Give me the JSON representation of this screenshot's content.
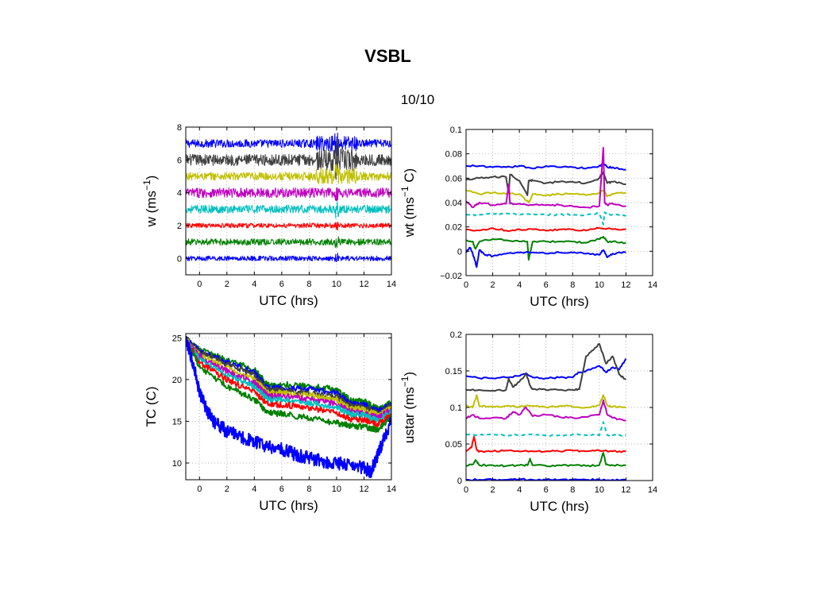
{
  "page": {
    "title": "VSBL",
    "subtitle": "10/10"
  },
  "chart_data": [
    {
      "id": "w",
      "type": "line",
      "xlabel": "UTC (hrs)",
      "ylabel_main": "w (ms",
      "ylabel_sup": "−1",
      "ylabel_tail": ")",
      "xlim": [
        -1,
        14
      ],
      "ylim": [
        -1,
        8
      ],
      "xticks": [
        0,
        2,
        4,
        6,
        8,
        10,
        12,
        14
      ],
      "yticks": [
        0,
        2,
        4,
        6,
        8
      ],
      "grid": true,
      "series": [
        {
          "offset": 7,
          "color": "#0000ff",
          "amplitude": 0.25
        },
        {
          "offset": 6,
          "color": "#404040",
          "amplitude": 0.35
        },
        {
          "offset": 5,
          "color": "#bfbf00",
          "amplitude": 0.25
        },
        {
          "offset": 4,
          "color": "#bf00bf",
          "amplitude": 0.3
        },
        {
          "offset": 3,
          "color": "#00bfbf",
          "amplitude": 0.25
        },
        {
          "offset": 2,
          "color": "#ff0000",
          "amplitude": 0.15
        },
        {
          "offset": 1,
          "color": "#008000",
          "amplitude": 0.2
        },
        {
          "offset": 0,
          "color": "#0000ff",
          "amplitude": 0.15
        }
      ]
    },
    {
      "id": "wt",
      "type": "line",
      "xlabel": "UTC (hrs)",
      "ylabel_main": "wt (ms",
      "ylabel_sup": "−1",
      "ylabel_tail": " C)",
      "xlim": [
        0,
        14
      ],
      "ylim": [
        -0.02,
        0.1
      ],
      "xticks": [
        0,
        2,
        4,
        6,
        8,
        10,
        12,
        14
      ],
      "yticks": [
        -0.02,
        0,
        0.02,
        0.04,
        0.06,
        0.08,
        0.1
      ],
      "yticklabels": [
        "−0.02",
        "0",
        "0.02",
        "0.04",
        "0.06",
        "0.08",
        "0.1"
      ],
      "grid": true,
      "series": [
        {
          "color": "#0000ff",
          "dash": false,
          "x": [
            0,
            1,
            2,
            3,
            4,
            5,
            6,
            7,
            8,
            9,
            10,
            10.3,
            10.6,
            11,
            12
          ],
          "y": [
            0.07,
            0.07,
            0.069,
            0.069,
            0.07,
            0.068,
            0.07,
            0.069,
            0.069,
            0.068,
            0.07,
            0.072,
            0.069,
            0.069,
            0.067
          ]
        },
        {
          "color": "#404040",
          "dash": false,
          "x": [
            0,
            1,
            2,
            3,
            3.2,
            3.3,
            4,
            4.6,
            4.7,
            5,
            6,
            7,
            8,
            9,
            10,
            10.3,
            10.6,
            11,
            12
          ],
          "y": [
            0.059,
            0.06,
            0.061,
            0.061,
            0.048,
            0.063,
            0.058,
            0.046,
            0.058,
            0.058,
            0.056,
            0.057,
            0.057,
            0.056,
            0.06,
            0.065,
            0.056,
            0.057,
            0.055
          ]
        },
        {
          "color": "#bfbf00",
          "dash": false,
          "x": [
            0,
            1,
            2,
            3,
            4,
            4.7,
            5,
            6,
            7,
            8,
            9,
            10,
            10.3,
            10.6,
            11,
            12
          ],
          "y": [
            0.05,
            0.047,
            0.048,
            0.047,
            0.047,
            0.04,
            0.047,
            0.046,
            0.047,
            0.047,
            0.046,
            0.048,
            0.05,
            0.045,
            0.047,
            0.048
          ]
        },
        {
          "color": "#bf00bf",
          "dash": false,
          "x": [
            0,
            0.5,
            1,
            2,
            3,
            3.2,
            3.3,
            4,
            5,
            6,
            7,
            8,
            9,
            10,
            10.3,
            10.4,
            10.6,
            11,
            12
          ],
          "y": [
            0.041,
            0.036,
            0.04,
            0.038,
            0.039,
            0.055,
            0.039,
            0.039,
            0.038,
            0.038,
            0.038,
            0.037,
            0.036,
            0.037,
            0.085,
            0.04,
            0.038,
            0.039,
            0.037
          ]
        },
        {
          "color": "#00bfbf",
          "dash": true,
          "x": [
            0,
            1,
            2,
            3,
            4,
            5,
            6,
            7,
            8,
            9,
            10,
            10.3,
            10.4,
            10.6,
            11,
            12
          ],
          "y": [
            0.03,
            0.03,
            0.031,
            0.031,
            0.03,
            0.031,
            0.03,
            0.03,
            0.03,
            0.03,
            0.031,
            0.022,
            0.032,
            0.03,
            0.03,
            0.029
          ]
        },
        {
          "color": "#ff0000",
          "dash": false,
          "x": [
            0,
            1,
            2,
            3,
            4,
            5,
            6,
            7,
            8,
            9,
            10,
            11,
            12
          ],
          "y": [
            0.018,
            0.017,
            0.019,
            0.017,
            0.018,
            0.018,
            0.017,
            0.018,
            0.018,
            0.017,
            0.019,
            0.018,
            0.018
          ]
        },
        {
          "color": "#008000",
          "dash": false,
          "x": [
            0,
            0.5,
            0.7,
            1,
            2,
            3,
            4,
            4.6,
            4.7,
            5,
            6,
            7,
            8,
            9,
            10,
            10.3,
            10.6,
            11,
            12
          ],
          "y": [
            0.009,
            0.008,
            0.002,
            0.008,
            0.01,
            0.009,
            0.008,
            0.008,
            -0.007,
            0.008,
            0.008,
            0.008,
            0.008,
            0.007,
            0.01,
            0.012,
            0.008,
            0.008,
            0.007
          ]
        },
        {
          "color": "#0000ff",
          "dash": false,
          "x": [
            0,
            0.3,
            0.6,
            0.8,
            1,
            1.5,
            2,
            3,
            4,
            5,
            6,
            7,
            8,
            9,
            10,
            10.3,
            10.6,
            11,
            12
          ],
          "y": [
            -0.001,
            0.003,
            -0.005,
            -0.013,
            0.001,
            -0.003,
            -0.004,
            -0.002,
            -0.001,
            -0.001,
            -0.002,
            -0.001,
            -0.001,
            -0.002,
            -0.003,
            0.001,
            -0.005,
            -0.002,
            -0.001
          ]
        }
      ]
    },
    {
      "id": "tc",
      "type": "line",
      "xlabel": "UTC (hrs)",
      "ylabel_main": "TC (C)",
      "ylabel_sup": "",
      "ylabel_tail": "",
      "xlim": [
        -1,
        14
      ],
      "ylim": [
        8,
        25.5
      ],
      "xticks": [
        0,
        2,
        4,
        6,
        8,
        10,
        12,
        14
      ],
      "yticks": [
        10,
        15,
        20,
        25
      ],
      "grid": true,
      "series": [
        {
          "color": "#008000",
          "x": [
            -1,
            0,
            2,
            4,
            5,
            6,
            8,
            10,
            11,
            12,
            13,
            14
          ],
          "y": [
            24.8,
            23.6,
            22.3,
            21.2,
            19.3,
            19.4,
            19.2,
            18.8,
            17.5,
            17.4,
            16.5,
            17.2
          ]
        },
        {
          "color": "#0000ff",
          "x": [
            -1,
            0,
            2,
            4,
            5,
            6,
            8,
            10,
            11,
            12,
            13,
            14
          ],
          "y": [
            24.8,
            23.4,
            22.1,
            20.8,
            19.0,
            19.0,
            18.8,
            18.4,
            17.1,
            17.0,
            16.2,
            17.0
          ]
        },
        {
          "color": "#404040",
          "x": [
            -1,
            0,
            2,
            4,
            5,
            6,
            8,
            10,
            11,
            12,
            13,
            14
          ],
          "y": [
            24.8,
            23.2,
            21.8,
            20.5,
            18.7,
            18.7,
            18.4,
            18.0,
            16.8,
            16.7,
            15.9,
            16.8
          ]
        },
        {
          "color": "#bfbf00",
          "x": [
            -1,
            0,
            2,
            4,
            5,
            6,
            8,
            10,
            11,
            12,
            13,
            14
          ],
          "y": [
            24.8,
            23.0,
            21.4,
            20.0,
            18.4,
            18.4,
            18.1,
            17.6,
            16.5,
            16.4,
            15.7,
            16.6
          ]
        },
        {
          "color": "#bf00bf",
          "x": [
            -1,
            0,
            2,
            4,
            5,
            6,
            8,
            10,
            11,
            12,
            13,
            14
          ],
          "y": [
            24.8,
            22.7,
            21.0,
            19.6,
            18.0,
            18.0,
            17.7,
            17.1,
            16.2,
            16.0,
            15.4,
            16.4
          ]
        },
        {
          "color": "#00bfbf",
          "x": [
            -1,
            0,
            2,
            4,
            5,
            6,
            8,
            10,
            11,
            12,
            13,
            14
          ],
          "y": [
            24.8,
            22.4,
            20.6,
            19.2,
            17.6,
            17.6,
            17.2,
            16.7,
            15.9,
            15.7,
            15.1,
            16.2
          ]
        },
        {
          "color": "#ff0000",
          "x": [
            -1,
            0,
            2,
            4,
            5,
            6,
            8,
            10,
            11,
            12,
            13,
            14
          ],
          "y": [
            24.8,
            22.0,
            20.0,
            18.5,
            17.0,
            17.0,
            16.6,
            16.0,
            15.3,
            15.2,
            14.6,
            15.8
          ]
        },
        {
          "color": "#008000",
          "x": [
            -1,
            0,
            2,
            4,
            5,
            6,
            8,
            10,
            11,
            12,
            13,
            14
          ],
          "y": [
            24.8,
            21.5,
            19.2,
            17.6,
            16.0,
            15.9,
            15.4,
            14.8,
            14.5,
            14.3,
            14.0,
            15.5
          ]
        },
        {
          "color": "#0000ff",
          "x": [
            -1,
            -0.5,
            0,
            0.5,
            1,
            2,
            3,
            4,
            5,
            6,
            7,
            8,
            9,
            10,
            11,
            12,
            12.5,
            13,
            14
          ],
          "y": [
            24.8,
            22.0,
            18.5,
            16.5,
            15.0,
            13.8,
            13.2,
            12.5,
            12.0,
            11.7,
            11.0,
            10.6,
            10.2,
            10.0,
            9.9,
            9.4,
            9.0,
            11.0,
            15.0
          ]
        }
      ]
    },
    {
      "id": "ustar",
      "type": "line",
      "xlabel": "UTC (hrs)",
      "ylabel_main": "ustar (ms",
      "ylabel_sup": "−1",
      "ylabel_tail": ")",
      "xlim": [
        0,
        14
      ],
      "ylim": [
        0,
        0.2
      ],
      "xticks": [
        0,
        2,
        4,
        6,
        8,
        10,
        12,
        14
      ],
      "yticks": [
        0,
        0.05,
        0.1,
        0.15,
        0.2
      ],
      "yticklabels": [
        "0",
        "0.05",
        "0.1",
        "0.15",
        "0.2"
      ],
      "grid": true,
      "series": [
        {
          "color": "#0000ff",
          "dash": false,
          "x": [
            0,
            1,
            2,
            3,
            4,
            4.5,
            5,
            6,
            7,
            8,
            8.5,
            9,
            10,
            10.5,
            11,
            11.5,
            12
          ],
          "y": [
            0.143,
            0.14,
            0.14,
            0.141,
            0.143,
            0.147,
            0.141,
            0.14,
            0.141,
            0.141,
            0.148,
            0.15,
            0.157,
            0.148,
            0.155,
            0.152,
            0.167
          ]
        },
        {
          "color": "#404040",
          "dash": false,
          "x": [
            0,
            1,
            2,
            3,
            3.2,
            3.5,
            4,
            4.5,
            4.8,
            5,
            6,
            7,
            8,
            8.5,
            9,
            9.5,
            10,
            10.5,
            11,
            11.5,
            12
          ],
          "y": [
            0.124,
            0.124,
            0.123,
            0.124,
            0.14,
            0.128,
            0.135,
            0.146,
            0.13,
            0.125,
            0.124,
            0.124,
            0.124,
            0.125,
            0.17,
            0.178,
            0.187,
            0.16,
            0.17,
            0.145,
            0.138
          ]
        },
        {
          "color": "#bfbf00",
          "dash": false,
          "x": [
            0,
            0.5,
            0.8,
            1,
            2,
            3,
            4,
            5,
            6,
            7,
            8,
            9,
            10,
            10.3,
            10.6,
            11,
            12
          ],
          "y": [
            0.103,
            0.1,
            0.117,
            0.102,
            0.101,
            0.102,
            0.101,
            0.102,
            0.1,
            0.102,
            0.101,
            0.1,
            0.103,
            0.117,
            0.103,
            0.101,
            0.1
          ]
        },
        {
          "color": "#bf00bf",
          "dash": false,
          "x": [
            0,
            0.5,
            1,
            2,
            3,
            3.5,
            4,
            4.5,
            5,
            6,
            7,
            8,
            9,
            10,
            10.3,
            10.6,
            11,
            12
          ],
          "y": [
            0.085,
            0.09,
            0.085,
            0.086,
            0.085,
            0.094,
            0.09,
            0.1,
            0.088,
            0.09,
            0.087,
            0.086,
            0.087,
            0.09,
            0.11,
            0.09,
            0.086,
            0.082
          ]
        },
        {
          "color": "#00bfbf",
          "dash": true,
          "x": [
            0,
            1,
            2,
            3,
            4,
            5,
            6,
            7,
            8,
            9,
            10,
            10.3,
            10.6,
            11,
            12
          ],
          "y": [
            0.063,
            0.062,
            0.063,
            0.062,
            0.062,
            0.063,
            0.062,
            0.062,
            0.063,
            0.062,
            0.062,
            0.08,
            0.062,
            0.062,
            0.062
          ]
        },
        {
          "color": "#ff0000",
          "dash": false,
          "x": [
            0,
            0.4,
            0.6,
            0.8,
            1,
            2,
            3,
            4,
            5,
            6,
            7,
            8,
            9,
            10,
            11,
            12
          ],
          "y": [
            0.04,
            0.045,
            0.06,
            0.042,
            0.04,
            0.04,
            0.041,
            0.04,
            0.04,
            0.04,
            0.04,
            0.041,
            0.04,
            0.041,
            0.04,
            0.04
          ]
        },
        {
          "color": "#008000",
          "dash": false,
          "x": [
            0,
            0.5,
            0.7,
            1,
            2,
            3,
            4,
            4.6,
            4.8,
            5,
            6,
            7,
            8,
            9,
            10,
            10.3,
            10.5,
            11,
            12
          ],
          "y": [
            0.02,
            0.022,
            0.028,
            0.021,
            0.021,
            0.02,
            0.021,
            0.021,
            0.03,
            0.021,
            0.02,
            0.021,
            0.021,
            0.02,
            0.021,
            0.038,
            0.022,
            0.021,
            0.021
          ]
        },
        {
          "color": "#0000ff",
          "dash": false,
          "x": [
            0,
            1,
            2,
            3,
            4,
            5,
            6,
            7,
            8,
            9,
            10,
            11,
            12
          ],
          "y": [
            0.001,
            0.001,
            0.001,
            0.001,
            0.002,
            0.001,
            0.001,
            0.001,
            0.001,
            0.001,
            0.001,
            0.001,
            0.001
          ]
        }
      ]
    }
  ]
}
